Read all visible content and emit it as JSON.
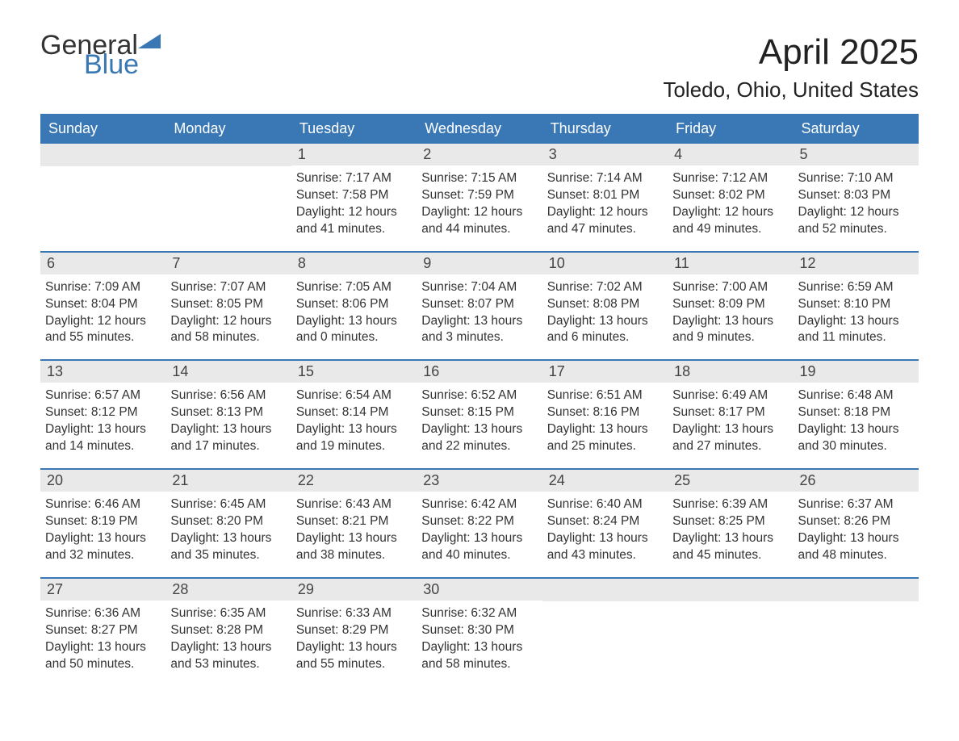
{
  "logo": {
    "text1": "General",
    "text2": "Blue",
    "accent_color": "#3a78b5"
  },
  "header": {
    "month_title": "April 2025",
    "location": "Toledo, Ohio, United States"
  },
  "colors": {
    "header_bg": "#3a78b5",
    "header_text": "#ffffff",
    "daynum_bg": "#e9e9e9",
    "body_text": "#333333",
    "page_bg": "#ffffff",
    "week_divider": "#3a78b5"
  },
  "calendar": {
    "weekdays": [
      "Sunday",
      "Monday",
      "Tuesday",
      "Wednesday",
      "Thursday",
      "Friday",
      "Saturday"
    ],
    "weeks": [
      [
        null,
        null,
        {
          "num": "1",
          "sunrise": "Sunrise: 7:17 AM",
          "sunset": "Sunset: 7:58 PM",
          "daylight": "Daylight: 12 hours and 41 minutes."
        },
        {
          "num": "2",
          "sunrise": "Sunrise: 7:15 AM",
          "sunset": "Sunset: 7:59 PM",
          "daylight": "Daylight: 12 hours and 44 minutes."
        },
        {
          "num": "3",
          "sunrise": "Sunrise: 7:14 AM",
          "sunset": "Sunset: 8:01 PM",
          "daylight": "Daylight: 12 hours and 47 minutes."
        },
        {
          "num": "4",
          "sunrise": "Sunrise: 7:12 AM",
          "sunset": "Sunset: 8:02 PM",
          "daylight": "Daylight: 12 hours and 49 minutes."
        },
        {
          "num": "5",
          "sunrise": "Sunrise: 7:10 AM",
          "sunset": "Sunset: 8:03 PM",
          "daylight": "Daylight: 12 hours and 52 minutes."
        }
      ],
      [
        {
          "num": "6",
          "sunrise": "Sunrise: 7:09 AM",
          "sunset": "Sunset: 8:04 PM",
          "daylight": "Daylight: 12 hours and 55 minutes."
        },
        {
          "num": "7",
          "sunrise": "Sunrise: 7:07 AM",
          "sunset": "Sunset: 8:05 PM",
          "daylight": "Daylight: 12 hours and 58 minutes."
        },
        {
          "num": "8",
          "sunrise": "Sunrise: 7:05 AM",
          "sunset": "Sunset: 8:06 PM",
          "daylight": "Daylight: 13 hours and 0 minutes."
        },
        {
          "num": "9",
          "sunrise": "Sunrise: 7:04 AM",
          "sunset": "Sunset: 8:07 PM",
          "daylight": "Daylight: 13 hours and 3 minutes."
        },
        {
          "num": "10",
          "sunrise": "Sunrise: 7:02 AM",
          "sunset": "Sunset: 8:08 PM",
          "daylight": "Daylight: 13 hours and 6 minutes."
        },
        {
          "num": "11",
          "sunrise": "Sunrise: 7:00 AM",
          "sunset": "Sunset: 8:09 PM",
          "daylight": "Daylight: 13 hours and 9 minutes."
        },
        {
          "num": "12",
          "sunrise": "Sunrise: 6:59 AM",
          "sunset": "Sunset: 8:10 PM",
          "daylight": "Daylight: 13 hours and 11 minutes."
        }
      ],
      [
        {
          "num": "13",
          "sunrise": "Sunrise: 6:57 AM",
          "sunset": "Sunset: 8:12 PM",
          "daylight": "Daylight: 13 hours and 14 minutes."
        },
        {
          "num": "14",
          "sunrise": "Sunrise: 6:56 AM",
          "sunset": "Sunset: 8:13 PM",
          "daylight": "Daylight: 13 hours and 17 minutes."
        },
        {
          "num": "15",
          "sunrise": "Sunrise: 6:54 AM",
          "sunset": "Sunset: 8:14 PM",
          "daylight": "Daylight: 13 hours and 19 minutes."
        },
        {
          "num": "16",
          "sunrise": "Sunrise: 6:52 AM",
          "sunset": "Sunset: 8:15 PM",
          "daylight": "Daylight: 13 hours and 22 minutes."
        },
        {
          "num": "17",
          "sunrise": "Sunrise: 6:51 AM",
          "sunset": "Sunset: 8:16 PM",
          "daylight": "Daylight: 13 hours and 25 minutes."
        },
        {
          "num": "18",
          "sunrise": "Sunrise: 6:49 AM",
          "sunset": "Sunset: 8:17 PM",
          "daylight": "Daylight: 13 hours and 27 minutes."
        },
        {
          "num": "19",
          "sunrise": "Sunrise: 6:48 AM",
          "sunset": "Sunset: 8:18 PM",
          "daylight": "Daylight: 13 hours and 30 minutes."
        }
      ],
      [
        {
          "num": "20",
          "sunrise": "Sunrise: 6:46 AM",
          "sunset": "Sunset: 8:19 PM",
          "daylight": "Daylight: 13 hours and 32 minutes."
        },
        {
          "num": "21",
          "sunrise": "Sunrise: 6:45 AM",
          "sunset": "Sunset: 8:20 PM",
          "daylight": "Daylight: 13 hours and 35 minutes."
        },
        {
          "num": "22",
          "sunrise": "Sunrise: 6:43 AM",
          "sunset": "Sunset: 8:21 PM",
          "daylight": "Daylight: 13 hours and 38 minutes."
        },
        {
          "num": "23",
          "sunrise": "Sunrise: 6:42 AM",
          "sunset": "Sunset: 8:22 PM",
          "daylight": "Daylight: 13 hours and 40 minutes."
        },
        {
          "num": "24",
          "sunrise": "Sunrise: 6:40 AM",
          "sunset": "Sunset: 8:24 PM",
          "daylight": "Daylight: 13 hours and 43 minutes."
        },
        {
          "num": "25",
          "sunrise": "Sunrise: 6:39 AM",
          "sunset": "Sunset: 8:25 PM",
          "daylight": "Daylight: 13 hours and 45 minutes."
        },
        {
          "num": "26",
          "sunrise": "Sunrise: 6:37 AM",
          "sunset": "Sunset: 8:26 PM",
          "daylight": "Daylight: 13 hours and 48 minutes."
        }
      ],
      [
        {
          "num": "27",
          "sunrise": "Sunrise: 6:36 AM",
          "sunset": "Sunset: 8:27 PM",
          "daylight": "Daylight: 13 hours and 50 minutes."
        },
        {
          "num": "28",
          "sunrise": "Sunrise: 6:35 AM",
          "sunset": "Sunset: 8:28 PM",
          "daylight": "Daylight: 13 hours and 53 minutes."
        },
        {
          "num": "29",
          "sunrise": "Sunrise: 6:33 AM",
          "sunset": "Sunset: 8:29 PM",
          "daylight": "Daylight: 13 hours and 55 minutes."
        },
        {
          "num": "30",
          "sunrise": "Sunrise: 6:32 AM",
          "sunset": "Sunset: 8:30 PM",
          "daylight": "Daylight: 13 hours and 58 minutes."
        },
        null,
        null,
        null
      ]
    ]
  }
}
